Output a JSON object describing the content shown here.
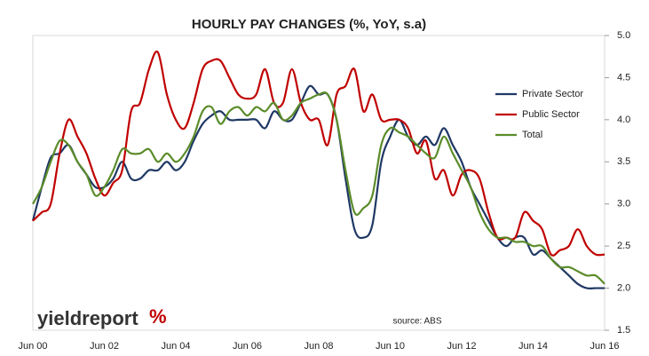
{
  "chart_data": {
    "type": "line",
    "title": "HOURLY PAY CHANGES (%, YoY, s.a)",
    "annotations": {
      "source": "source: ABS",
      "logo_text": "yieldreport",
      "logo_symbol": "%"
    },
    "categories": [
      "Jun 00",
      null,
      null,
      null,
      null,
      null,
      null,
      null,
      "Jun 02",
      null,
      null,
      null,
      null,
      null,
      null,
      null,
      "Jun 04",
      null,
      null,
      null,
      null,
      null,
      null,
      null,
      "Jun 06",
      null,
      null,
      null,
      null,
      null,
      null,
      null,
      "Jun 08",
      null,
      null,
      null,
      null,
      null,
      null,
      null,
      "Jun 10",
      null,
      null,
      null,
      null,
      null,
      null,
      null,
      "Jun 12",
      null,
      null,
      null,
      null,
      null,
      null,
      null,
      "Jun 14",
      null,
      null,
      null,
      null,
      null,
      null,
      null,
      "Jun 16"
    ],
    "series": [
      {
        "name": "Private Sector",
        "color": "#1f3864",
        "values": [
          2.8,
          3.2,
          3.55,
          3.6,
          3.7,
          3.5,
          3.35,
          3.2,
          3.2,
          3.3,
          3.5,
          3.3,
          3.3,
          3.4,
          3.4,
          3.5,
          3.4,
          3.5,
          3.75,
          3.95,
          4.05,
          4.1,
          4.0,
          4.0,
          4.0,
          4.0,
          3.9,
          4.1,
          4.0,
          4.0,
          4.2,
          4.4,
          4.3,
          4.3,
          4.0,
          3.3,
          2.7,
          2.6,
          2.75,
          3.5,
          3.8,
          4.0,
          3.8,
          3.7,
          3.8,
          3.7,
          3.9,
          3.7,
          3.5,
          3.2,
          3.0,
          2.8,
          2.6,
          2.5,
          2.6,
          2.6,
          2.4,
          2.45,
          2.35,
          2.25,
          2.15,
          2.05,
          2.0,
          2.0,
          2.0
        ]
      },
      {
        "name": "Public Sector",
        "color": "#c00000",
        "values": [
          2.8,
          2.9,
          3.0,
          3.6,
          4.0,
          3.8,
          3.6,
          3.3,
          3.1,
          3.25,
          3.4,
          4.1,
          4.2,
          4.6,
          4.8,
          4.3,
          4.0,
          3.9,
          4.2,
          4.6,
          4.7,
          4.7,
          4.5,
          4.3,
          4.25,
          4.3,
          4.6,
          4.2,
          4.2,
          4.6,
          4.2,
          4.0,
          4.0,
          3.7,
          4.3,
          4.4,
          4.6,
          4.1,
          4.3,
          4.0,
          4.0,
          4.0,
          3.9,
          3.6,
          3.75,
          3.3,
          3.4,
          3.1,
          3.35,
          3.4,
          3.3,
          2.9,
          2.6,
          2.6,
          2.6,
          2.9,
          2.8,
          2.7,
          2.4,
          2.45,
          2.5,
          2.7,
          2.5,
          2.4,
          2.4
        ]
      },
      {
        "name": "Total",
        "color": "#5b8c2a",
        "values": [
          3.0,
          3.2,
          3.5,
          3.75,
          3.7,
          3.5,
          3.35,
          3.1,
          3.2,
          3.4,
          3.65,
          3.6,
          3.6,
          3.65,
          3.5,
          3.6,
          3.5,
          3.6,
          3.8,
          4.1,
          4.15,
          3.95,
          4.1,
          4.15,
          4.05,
          4.15,
          4.1,
          4.2,
          4.0,
          4.05,
          4.2,
          4.25,
          4.3,
          4.3,
          4.0,
          3.4,
          2.9,
          2.95,
          3.1,
          3.7,
          3.9,
          3.85,
          3.8,
          3.7,
          3.6,
          3.55,
          3.8,
          3.6,
          3.4,
          3.2,
          2.9,
          2.7,
          2.6,
          2.6,
          2.55,
          2.55,
          2.5,
          2.5,
          2.35,
          2.25,
          2.25,
          2.2,
          2.15,
          2.15,
          2.05
        ]
      }
    ],
    "ylim": [
      1.5,
      5.0
    ],
    "yticks": [
      1.5,
      {
        "value": 2.0,
        "label": "2.0"
      },
      2.5,
      {
        "value": 3.0,
        "label": "3.0"
      },
      3.5,
      {
        "value": 4.0,
        "label": "4.0"
      },
      4.5,
      {
        "value": 5.0,
        "label": "5.0"
      }
    ],
    "y_axis_side": "right",
    "grid": false,
    "legend": "upper right"
  }
}
